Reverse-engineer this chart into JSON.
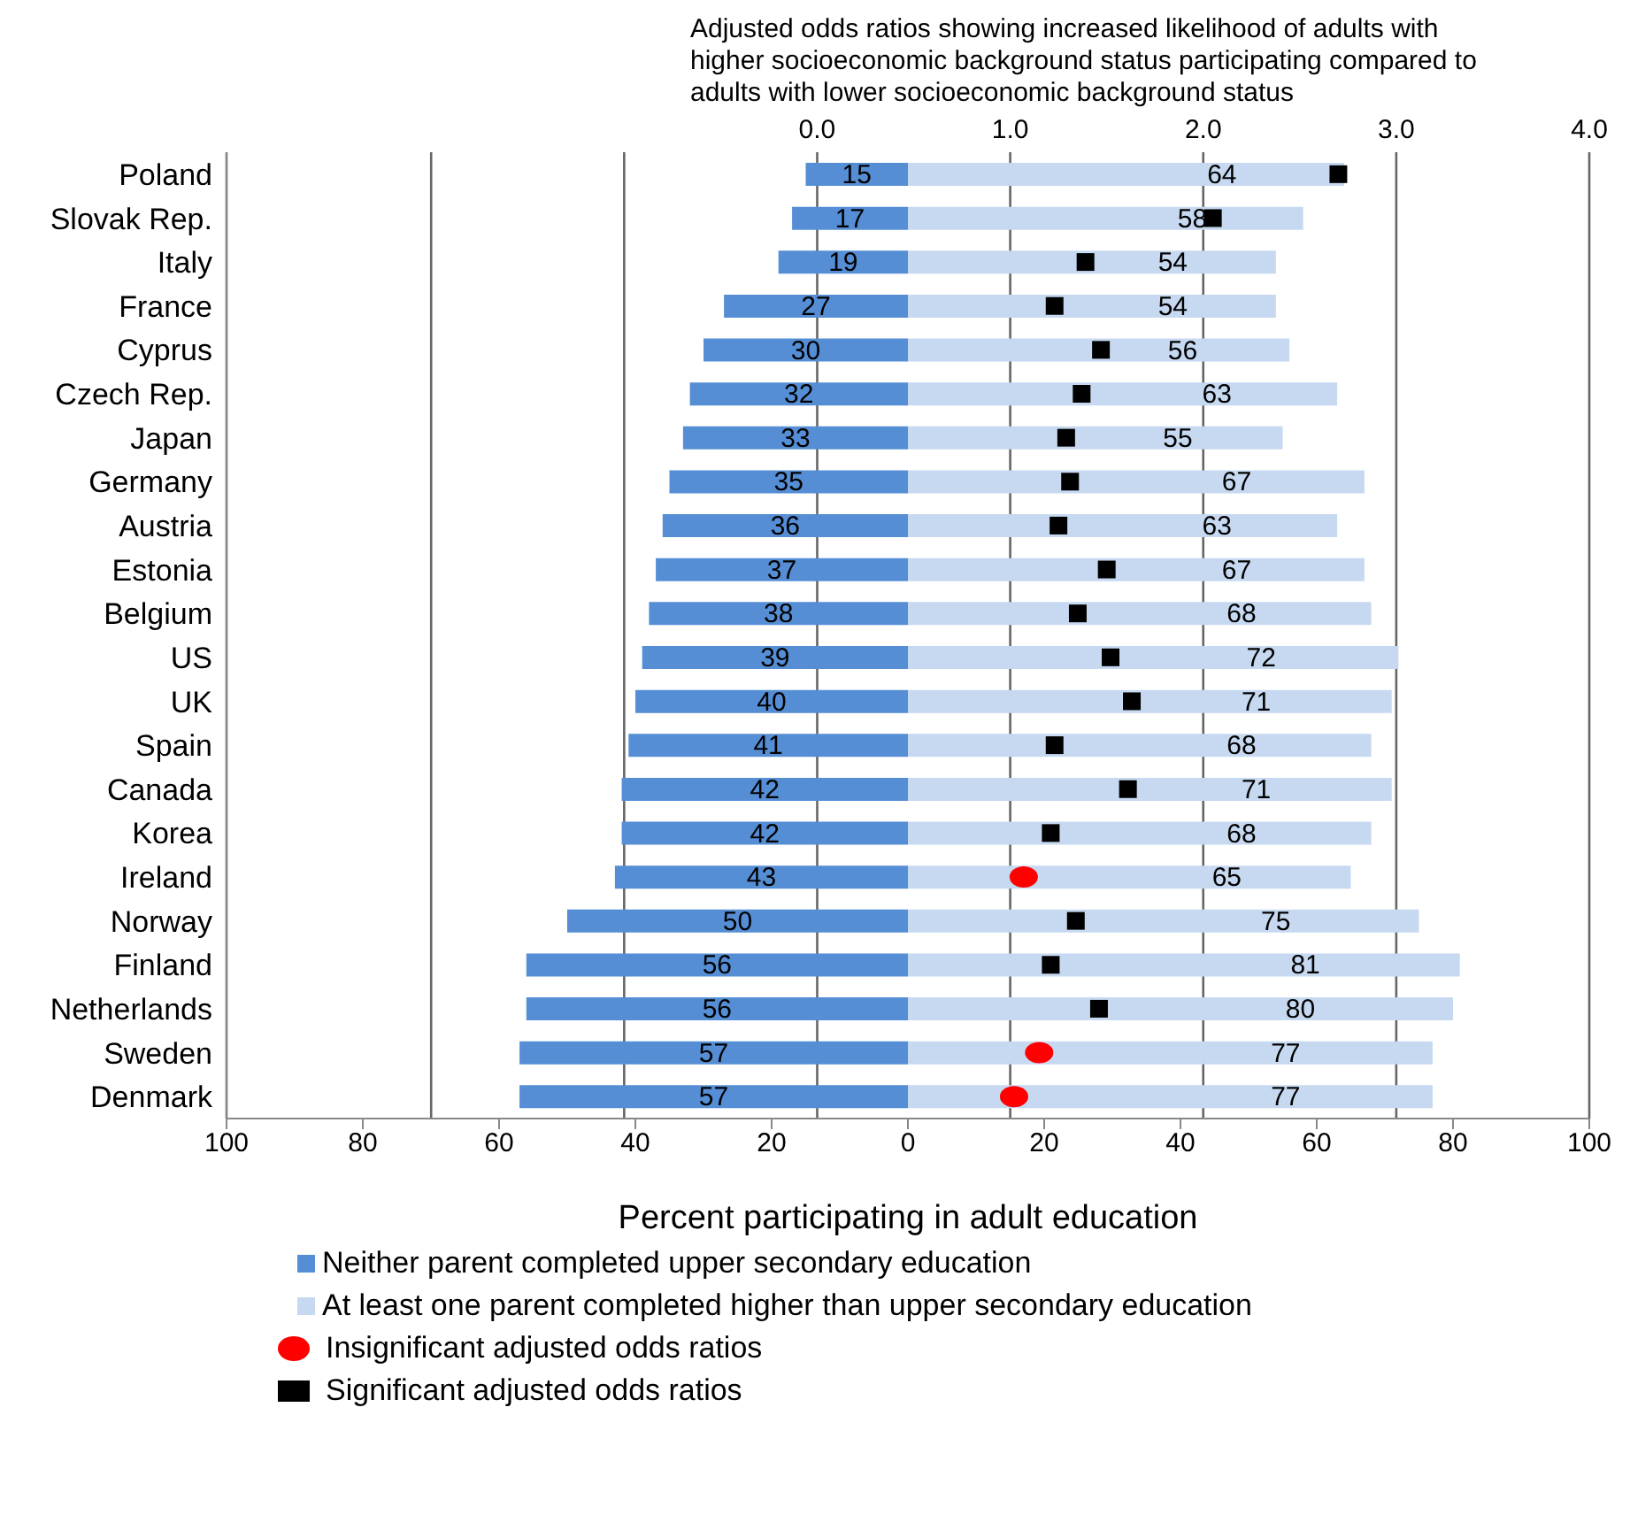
{
  "chart_data": {
    "type": "bar",
    "orientation": "horizontal",
    "x2label": "Adjusted odds ratios showing increased likelihood of adults with higher socioeconomic background status participating compared to adults with lower socioeconomic background status",
    "xlabel": "Percent participating in adult education",
    "categories": [
      "Poland",
      "Slovak Rep.",
      "Italy",
      "France",
      "Cyprus",
      "Czech Rep.",
      "Japan",
      "Germany",
      "Austria",
      "Estonia",
      "Belgium",
      "US",
      "UK",
      "Spain",
      "Canada",
      "Korea",
      "Ireland",
      "Norway",
      "Finland",
      "Netherlands",
      "Sweden",
      "Denmark"
    ],
    "xlim": [
      -100,
      100
    ],
    "xticks": [
      {
        "value": -100,
        "label": "100"
      },
      {
        "value": -80,
        "label": "80"
      },
      {
        "value": -60,
        "label": "60"
      },
      {
        "value": -40,
        "label": "40"
      },
      {
        "value": -20,
        "label": "20"
      },
      0,
      20,
      40,
      60,
      80,
      100
    ],
    "x2lim": [
      -3.06,
      4
    ],
    "x2ticks": [
      {
        "value": -2,
        "label": null
      },
      {
        "value": -1,
        "label": null
      },
      {
        "value": 0,
        "label": "0.0"
      },
      {
        "value": 1,
        "label": "1.0"
      },
      {
        "value": 2,
        "label": "2.0"
      },
      {
        "value": 3,
        "label": "3.0"
      },
      {
        "value": 4,
        "label": "4.0"
      }
    ],
    "grid": "x",
    "legend": "bottom",
    "series": [
      {
        "name": "Neither parent completed upper secondary education",
        "color": "#558ed5",
        "values": [
          15,
          17,
          19,
          27,
          30,
          32,
          33,
          35,
          36,
          37,
          38,
          39,
          40,
          41,
          42,
          42,
          43,
          50,
          56,
          56,
          57,
          57
        ],
        "base": [
          -15,
          -17,
          -19,
          -27,
          -30,
          -32,
          -33,
          -35,
          -36,
          -37,
          -38,
          -39,
          -40,
          -41,
          -42,
          -42,
          -43,
          -50,
          -56,
          -56,
          -57,
          -57
        ],
        "value_labels": [
          "15",
          "17",
          "19",
          "27",
          "30",
          "32",
          "33",
          "35",
          "36",
          "37",
          "38",
          "39",
          "40",
          "41",
          "42",
          "42",
          "43",
          "50",
          "56",
          "56",
          "57",
          "57"
        ]
      },
      {
        "name": "At least one parent completed higher than upper secondary education",
        "color": "#c6d9f1",
        "values": [
          64,
          58,
          54,
          54,
          56,
          63,
          55,
          67,
          63,
          67,
          68,
          72,
          71,
          68,
          71,
          68,
          65,
          75,
          81,
          80,
          77,
          77
        ],
        "value_labels": [
          "64",
          "58",
          "54",
          "54",
          "56",
          "63",
          "55",
          "67",
          "63",
          "67",
          "68",
          "72",
          "71",
          "68",
          "71",
          "68",
          "65",
          "75",
          "81",
          "80",
          "77",
          "77"
        ]
      },
      {
        "name": "Insignificant adjusted odds ratios",
        "type": "scatter",
        "axis": "x2",
        "marker": "circle",
        "color": "#ff0000",
        "values": [
          null,
          null,
          null,
          null,
          null,
          null,
          null,
          null,
          null,
          null,
          null,
          null,
          null,
          null,
          null,
          null,
          1.07,
          null,
          null,
          null,
          1.15,
          1.02
        ]
      },
      {
        "name": "Significant adjusted odds ratios",
        "type": "scatter",
        "axis": "x2",
        "marker": "square",
        "color": "#000000",
        "values": [
          2.7,
          2.05,
          1.39,
          1.23,
          1.47,
          1.37,
          1.29,
          1.31,
          1.25,
          1.5,
          1.35,
          1.52,
          1.63,
          1.23,
          1.61,
          1.21,
          null,
          1.34,
          1.21,
          1.46,
          null,
          null
        ]
      }
    ]
  }
}
